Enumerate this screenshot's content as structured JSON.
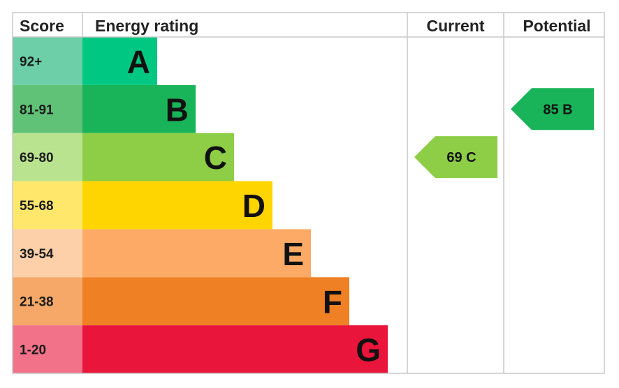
{
  "chart_data": {
    "type": "bar",
    "headers": {
      "score": "Score",
      "energy_rating": "Energy rating",
      "current": "Current",
      "potential": "Potential"
    },
    "bands": [
      {
        "range": "92+",
        "letter": "A",
        "color": "#00c781",
        "tint": "#6ccfa8"
      },
      {
        "range": "81-91",
        "letter": "B",
        "color": "#19b459",
        "tint": "#60c277"
      },
      {
        "range": "69-80",
        "letter": "C",
        "color": "#8dce46",
        "tint": "#b9e38f"
      },
      {
        "range": "55-68",
        "letter": "D",
        "color": "#ffd500",
        "tint": "#ffe76c"
      },
      {
        "range": "39-54",
        "letter": "E",
        "color": "#fcaa65",
        "tint": "#fdd0a9"
      },
      {
        "range": "21-38",
        "letter": "F",
        "color": "#ef8023",
        "tint": "#f5a867"
      },
      {
        "range": "1-20",
        "letter": "G",
        "color": "#e9153b",
        "tint": "#f27289"
      }
    ],
    "current": {
      "value": 69,
      "band": "C",
      "label": "69 C",
      "color": "#8dce46"
    },
    "potential": {
      "value": 85,
      "band": "B",
      "label": "85 B",
      "color": "#19b459"
    }
  }
}
